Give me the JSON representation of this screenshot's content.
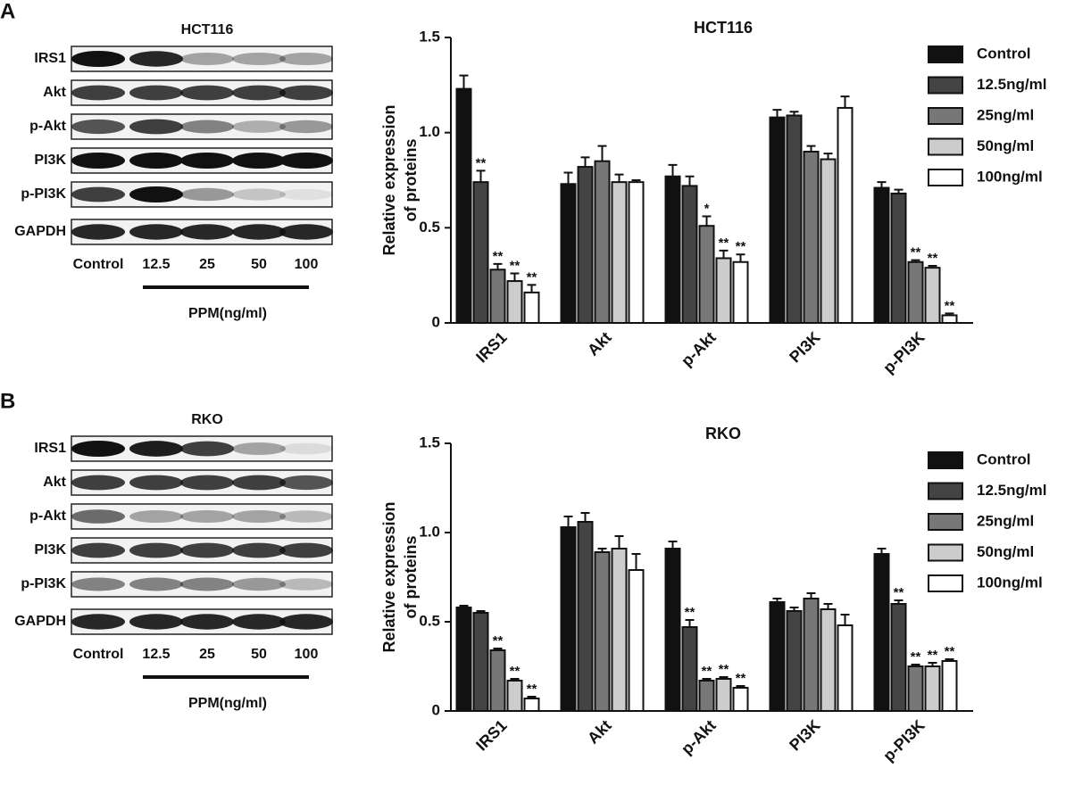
{
  "blots": [
    {
      "letter": "A",
      "title": "HCT116",
      "rows": [
        "IRS1",
        "Akt",
        "p-Akt",
        "PI3K",
        "p-PI3K",
        "GAPDH"
      ],
      "lanes": [
        "Control",
        "12.5",
        "25",
        "50",
        "100"
      ],
      "treatment": "PPM(ng/ml)"
    },
    {
      "letter": "B",
      "title": "RKO",
      "rows": [
        "IRS1",
        "Akt",
        "p-Akt",
        "PI3K",
        "p-PI3K",
        "GAPDH"
      ],
      "lanes": [
        "Control",
        "12.5",
        "25",
        "50",
        "100"
      ],
      "treatment": "PPM(ng/ml)"
    }
  ],
  "chart_data": [
    {
      "type": "bar",
      "title": "HCT116",
      "ylabel": [
        "Relative expression",
        "of proteins"
      ],
      "categories": [
        "IRS1",
        "Akt",
        "p-Akt",
        "PI3K",
        "p-PI3K"
      ],
      "ylim": [
        0,
        1.5
      ],
      "yticks": [
        0,
        0.5,
        {
          "value": 1,
          "label": "1.0"
        },
        1.5
      ],
      "legend": "right",
      "series": [
        {
          "name": "Control",
          "color": "#111111",
          "values": [
            1.23,
            0.73,
            0.77,
            1.08,
            0.71
          ],
          "errors": [
            0.07,
            0.06,
            0.06,
            0.04,
            0.03
          ],
          "annotations": [
            null,
            null,
            null,
            null,
            null
          ]
        },
        {
          "name": "12.5ng/ml",
          "color": "#444444",
          "values": [
            0.74,
            0.82,
            0.72,
            1.09,
            0.68
          ],
          "errors": [
            0.06,
            0.05,
            0.05,
            0.02,
            0.02
          ],
          "annotations": [
            "**",
            null,
            null,
            null,
            null
          ]
        },
        {
          "name": "25ng/ml",
          "color": "#777777",
          "values": [
            0.28,
            0.85,
            0.51,
            0.9,
            0.32
          ],
          "errors": [
            0.03,
            0.08,
            0.05,
            0.03,
            0.01
          ],
          "annotations": [
            "**",
            null,
            "*",
            null,
            "**"
          ]
        },
        {
          "name": "50ng/ml",
          "color": "#cccccc",
          "values": [
            0.22,
            0.74,
            0.34,
            0.86,
            0.29
          ],
          "errors": [
            0.04,
            0.04,
            0.04,
            0.03,
            0.01
          ],
          "annotations": [
            "**",
            null,
            "**",
            null,
            "**"
          ]
        },
        {
          "name": "100ng/ml",
          "color": "#ffffff",
          "values": [
            0.16,
            0.74,
            0.32,
            1.13,
            0.04
          ],
          "errors": [
            0.04,
            0.01,
            0.04,
            0.06,
            0.01
          ],
          "annotations": [
            "**",
            null,
            "**",
            null,
            "**"
          ]
        }
      ]
    },
    {
      "type": "bar",
      "title": "RKO",
      "ylabel": [
        "Relative expression",
        "of proteins"
      ],
      "categories": [
        "IRS1",
        "Akt",
        "p-Akt",
        "PI3K",
        "p-PI3K"
      ],
      "ylim": [
        0,
        1.5
      ],
      "yticks": [
        0,
        0.5,
        {
          "value": 1,
          "label": "1.0"
        },
        1.5
      ],
      "legend": "right",
      "series": [
        {
          "name": "Control",
          "color": "#111111",
          "values": [
            0.58,
            1.03,
            0.91,
            0.61,
            0.88
          ],
          "errors": [
            0.01,
            0.06,
            0.04,
            0.02,
            0.03
          ],
          "annotations": [
            null,
            null,
            null,
            null,
            null
          ]
        },
        {
          "name": "12.5ng/ml",
          "color": "#444444",
          "values": [
            0.55,
            1.06,
            0.47,
            0.56,
            0.6
          ],
          "errors": [
            0.01,
            0.05,
            0.04,
            0.02,
            0.02
          ],
          "annotations": [
            null,
            null,
            "**",
            null,
            "**"
          ]
        },
        {
          "name": "25ng/ml",
          "color": "#777777",
          "values": [
            0.34,
            0.89,
            0.17,
            0.63,
            0.25
          ],
          "errors": [
            0.01,
            0.02,
            0.01,
            0.03,
            0.01
          ],
          "annotations": [
            "**",
            null,
            "**",
            null,
            "**"
          ]
        },
        {
          "name": "50ng/ml",
          "color": "#cccccc",
          "values": [
            0.17,
            0.91,
            0.18,
            0.57,
            0.25
          ],
          "errors": [
            0.01,
            0.07,
            0.01,
            0.03,
            0.02
          ],
          "annotations": [
            "**",
            null,
            "**",
            null,
            "**"
          ]
        },
        {
          "name": "100ng/ml",
          "color": "#ffffff",
          "values": [
            0.07,
            0.79,
            0.13,
            0.48,
            0.28
          ],
          "errors": [
            0.01,
            0.09,
            0.01,
            0.06,
            0.01
          ],
          "annotations": [
            "**",
            null,
            "**",
            null,
            "**"
          ]
        }
      ]
    }
  ]
}
